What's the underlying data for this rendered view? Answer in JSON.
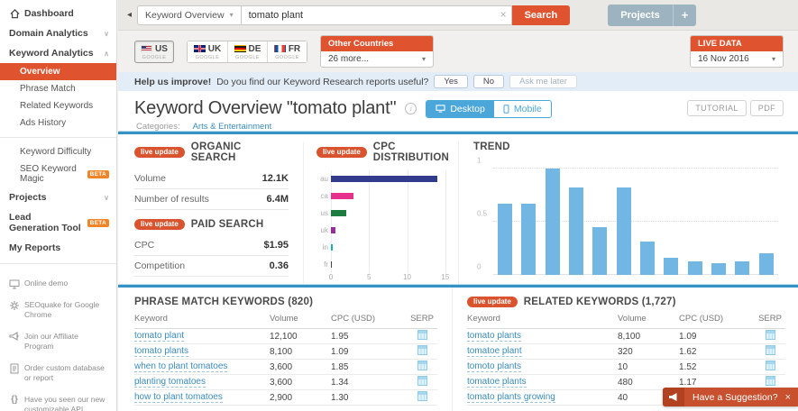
{
  "colors": {
    "accent_orange": "#e0532f",
    "badge_orange": "#d9532e",
    "link_blue": "#3a8bbb",
    "divider_blue": "#3492c4",
    "toggle_blue": "#4ba6d9",
    "trend_bar_blue": "#72b6e4",
    "projects_gray": "#9db3bf",
    "toast_red": "#c8502f"
  },
  "sidebar": {
    "items": [
      {
        "label": "Dashboard"
      },
      {
        "label": "Domain Analytics"
      },
      {
        "label": "Keyword Analytics"
      },
      {
        "label": "Overview",
        "selected": true
      },
      {
        "label": "Phrase Match"
      },
      {
        "label": "Related Keywords"
      },
      {
        "label": "Ads History"
      },
      {
        "label": "Keyword Difficulty"
      },
      {
        "label": "SEO Keyword Magic",
        "badge": "BETA"
      },
      {
        "label": "Projects"
      },
      {
        "label": "Lead Generation Tool",
        "badge": "BETA"
      },
      {
        "label": "My Reports"
      }
    ],
    "footer_items": [
      {
        "label": "Online demo"
      },
      {
        "label": "SEOquake for Google Chrome"
      },
      {
        "label": "Join our Affiliate Program"
      },
      {
        "label": "Order custom database or report"
      },
      {
        "label": "Have you seen our new customizable API format?"
      }
    ]
  },
  "topbar": {
    "search_type": "Keyword Overview",
    "search_value": "tomato plant",
    "search_button": "Search",
    "projects_button": "Projects",
    "add_button": "+"
  },
  "filters": {
    "engine_label": "GOOGLE",
    "tabs": [
      {
        "code": "US",
        "selected": true
      },
      {
        "code": "UK",
        "selected": false
      },
      {
        "code": "DE",
        "selected": false
      },
      {
        "code": "FR",
        "selected": false
      }
    ],
    "other_countries": {
      "header": "Other Countries",
      "value": "26 more..."
    },
    "live_data": {
      "header": "LIVE DATA",
      "value": "16 Nov 2016"
    }
  },
  "help_bar": {
    "bold": "Help us improve!",
    "question": "Do you find our Keyword Research reports useful?",
    "yes": "Yes",
    "no": "No",
    "later": "Ask me later"
  },
  "page_header": {
    "title": "Keyword Overview \"tomato plant\"",
    "device_desktop": "Desktop",
    "device_mobile": "Mobile",
    "tutorial": "TUTORIAL",
    "pdf": "PDF",
    "categories_label": "Categories:",
    "category_link": "Arts & Entertainment"
  },
  "panels": {
    "organic": {
      "badge": "live update",
      "title": "ORGANIC SEARCH",
      "rows": [
        {
          "label": "Volume",
          "value": "12.1K"
        },
        {
          "label": "Number of results",
          "value": "6.4M"
        }
      ]
    },
    "paid": {
      "badge": "live update",
      "title": "PAID SEARCH",
      "rows": [
        {
          "label": "CPC",
          "value": "$1.95"
        },
        {
          "label": "Competition",
          "value": "0.36"
        }
      ]
    },
    "cpc_distribution": {
      "badge": "live update",
      "title": "CPC DISTRIBUTION"
    },
    "trend": {
      "title": "TREND"
    }
  },
  "chart_data": [
    {
      "name": "cpc_distribution",
      "type": "bar",
      "orientation": "horizontal",
      "title": "CPC DISTRIBUTION",
      "categories": [
        "au",
        "ca",
        "us",
        "uk",
        "in",
        "fr"
      ],
      "values": [
        14,
        2.9,
        2.0,
        0.6,
        0.25,
        0.08
      ],
      "bar_colors": [
        "#333c8c",
        "#e5318c",
        "#1d7a40",
        "#962e99",
        "#14b0ba",
        "#444444"
      ],
      "xticks": [
        0,
        5,
        10,
        15
      ],
      "xlim": [
        0,
        15.5
      ],
      "grid": true
    },
    {
      "name": "trend",
      "type": "bar",
      "title": "TREND",
      "values": [
        0.67,
        0.67,
        1.0,
        0.82,
        0.45,
        0.82,
        0.31,
        0.16,
        0.13,
        0.11,
        0.13,
        0.2
      ],
      "yticks": [
        0,
        0.5,
        1
      ],
      "ylim": [
        0,
        1.05
      ],
      "bar_color": "#72b6e4",
      "grid": true
    }
  ],
  "tables": {
    "phrase_match": {
      "title": "PHRASE MATCH KEYWORDS (820)",
      "columns": [
        "Keyword",
        "Volume",
        "CPC (USD)",
        "SERP"
      ],
      "rows": [
        [
          "tomato plant",
          "12,100",
          "1.95"
        ],
        [
          "tomato plants",
          "8,100",
          "1.09"
        ],
        [
          "when to plant tomatoes",
          "3,600",
          "1.85"
        ],
        [
          "planting tomatoes",
          "3,600",
          "1.34"
        ],
        [
          "how to plant tomatoes",
          "2,900",
          "1.30"
        ]
      ]
    },
    "related": {
      "badge": "live update",
      "title": "RELATED KEYWORDS (1,727)",
      "columns": [
        "Keyword",
        "Volume",
        "CPC (USD)",
        "SERP"
      ],
      "rows": [
        [
          "tomato plants",
          "8,100",
          "1.09"
        ],
        [
          "tomatoe plant",
          "320",
          "1.62"
        ],
        [
          "tomoto plants",
          "10",
          "1.52"
        ],
        [
          "tomatoe plants",
          "480",
          "1.17"
        ],
        [
          "tomato plants growing",
          "40",
          "0.00"
        ]
      ]
    }
  },
  "toast": {
    "text": "Have a Suggestion?",
    "close": "×"
  }
}
